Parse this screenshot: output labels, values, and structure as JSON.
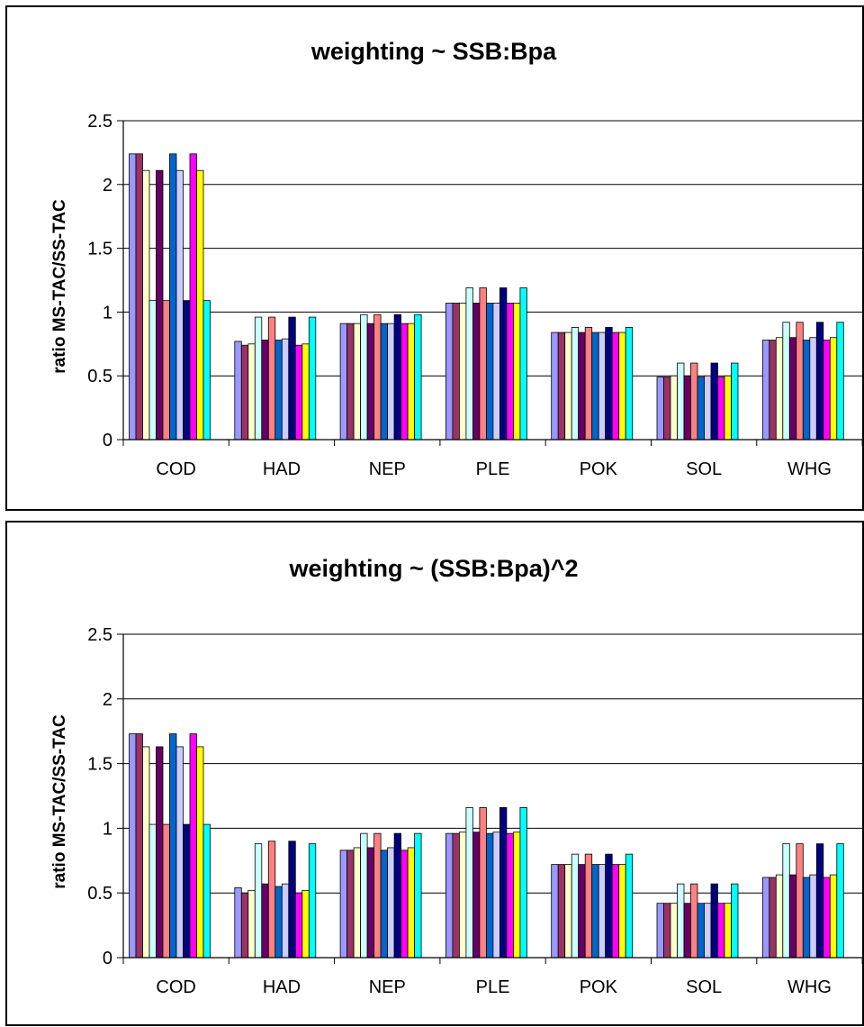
{
  "palette": [
    "#9999ff",
    "#993366",
    "#ffffcc",
    "#ccffff",
    "#660066",
    "#ff8080",
    "#0066cc",
    "#ccccff",
    "#000080",
    "#ff00ff",
    "#ffff00",
    "#00ffff"
  ],
  "chart_data": [
    {
      "type": "bar",
      "title": "weighting ~ SSB:Bpa",
      "xlabel": "",
      "ylabel": "ratio MS-TAC/SS-TAC",
      "ylim": [
        0,
        2.5
      ],
      "yticks": [
        "0",
        "0.5",
        "1",
        "1.5",
        "2",
        "2.5"
      ],
      "grid": true,
      "legend": "none",
      "categories": [
        "COD",
        "HAD",
        "NEP",
        "PLE",
        "POK",
        "SOL",
        "WHG"
      ],
      "values": [
        [
          2.24,
          2.24,
          2.11,
          1.09,
          2.11,
          1.09,
          2.24,
          2.11,
          1.09,
          2.24,
          2.11,
          1.09
        ],
        [
          0.77,
          0.74,
          0.75,
          0.96,
          0.78,
          0.96,
          0.78,
          0.79,
          0.96,
          0.74,
          0.75,
          0.96
        ],
        [
          0.91,
          0.91,
          0.91,
          0.98,
          0.91,
          0.98,
          0.91,
          0.91,
          0.98,
          0.91,
          0.91,
          0.98
        ],
        [
          1.07,
          1.07,
          1.07,
          1.19,
          1.07,
          1.19,
          1.07,
          1.07,
          1.19,
          1.07,
          1.07,
          1.19
        ],
        [
          0.84,
          0.84,
          0.84,
          0.88,
          0.84,
          0.88,
          0.84,
          0.84,
          0.88,
          0.84,
          0.84,
          0.88
        ],
        [
          0.49,
          0.49,
          0.5,
          0.6,
          0.5,
          0.6,
          0.49,
          0.5,
          0.6,
          0.49,
          0.5,
          0.6
        ],
        [
          0.78,
          0.78,
          0.8,
          0.92,
          0.8,
          0.92,
          0.78,
          0.8,
          0.92,
          0.78,
          0.8,
          0.92
        ]
      ]
    },
    {
      "type": "bar",
      "title": "weighting ~ (SSB:Bpa)^2",
      "xlabel": "",
      "ylabel": "ratio MS-TAC/SS-TAC",
      "ylim": [
        0,
        2.5
      ],
      "yticks": [
        "0",
        "0.5",
        "1",
        "1.5",
        "2",
        "2.5"
      ],
      "grid": true,
      "legend": "none",
      "categories": [
        "COD",
        "HAD",
        "NEP",
        "PLE",
        "POK",
        "SOL",
        "WHG"
      ],
      "values": [
        [
          1.73,
          1.73,
          1.63,
          1.03,
          1.63,
          1.03,
          1.73,
          1.63,
          1.03,
          1.73,
          1.63,
          1.03
        ],
        [
          0.54,
          0.5,
          0.52,
          0.88,
          0.57,
          0.9,
          0.55,
          0.57,
          0.9,
          0.5,
          0.52,
          0.88
        ],
        [
          0.83,
          0.83,
          0.85,
          0.96,
          0.85,
          0.96,
          0.83,
          0.85,
          0.96,
          0.83,
          0.85,
          0.96
        ],
        [
          0.96,
          0.96,
          0.97,
          1.16,
          0.97,
          1.16,
          0.96,
          0.97,
          1.16,
          0.96,
          0.97,
          1.16
        ],
        [
          0.72,
          0.72,
          0.72,
          0.8,
          0.72,
          0.8,
          0.72,
          0.72,
          0.8,
          0.72,
          0.72,
          0.8
        ],
        [
          0.42,
          0.42,
          0.42,
          0.57,
          0.42,
          0.57,
          0.42,
          0.42,
          0.57,
          0.42,
          0.42,
          0.57
        ],
        [
          0.62,
          0.62,
          0.64,
          0.88,
          0.64,
          0.88,
          0.62,
          0.64,
          0.88,
          0.62,
          0.64,
          0.88
        ]
      ]
    }
  ]
}
